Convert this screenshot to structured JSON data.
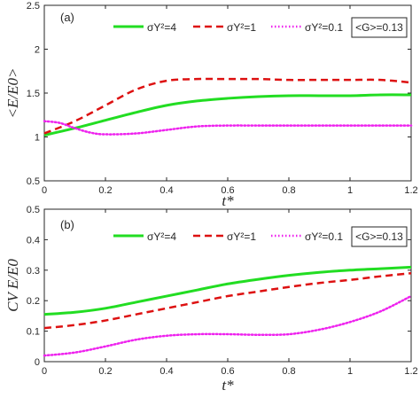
{
  "chart_data": [
    {
      "type": "line",
      "panel_label": "(a)",
      "xlabel": "t*",
      "ylabel": "<E/E0>",
      "xlim": [
        0,
        1.2
      ],
      "ylim": [
        0.5,
        2.5
      ],
      "x_ticks": [
        "0",
        "0.2",
        "0.4",
        "0.6",
        "0.8",
        "1",
        "1.2"
      ],
      "y_ticks": [
        "0.5",
        "1",
        "1.5",
        "2",
        "2.5"
      ],
      "legend_location": "top",
      "annotation_box": "<G>=0.13",
      "series": [
        {
          "name": "σY²=4",
          "color": "#22dd22",
          "style": "solid",
          "x": [
            0,
            0.1,
            0.2,
            0.3,
            0.4,
            0.5,
            0.6,
            0.7,
            0.8,
            0.9,
            1.0,
            1.1,
            1.2
          ],
          "y": [
            1.02,
            1.1,
            1.19,
            1.28,
            1.36,
            1.41,
            1.44,
            1.46,
            1.47,
            1.47,
            1.47,
            1.48,
            1.48
          ]
        },
        {
          "name": "σY²=1",
          "color": "#dd1111",
          "style": "dashed",
          "x": [
            0,
            0.1,
            0.2,
            0.3,
            0.4,
            0.5,
            0.6,
            0.7,
            0.8,
            0.9,
            1.0,
            1.1,
            1.2
          ],
          "y": [
            1.04,
            1.18,
            1.36,
            1.54,
            1.64,
            1.66,
            1.66,
            1.66,
            1.65,
            1.65,
            1.65,
            1.65,
            1.62
          ]
        },
        {
          "name": "σY²=0.1",
          "color": "#ee22ee",
          "style": "dotted",
          "x": [
            0,
            0.05,
            0.1,
            0.15,
            0.2,
            0.3,
            0.4,
            0.5,
            0.6,
            0.7,
            0.8,
            0.9,
            1.0,
            1.1,
            1.2
          ],
          "y": [
            1.18,
            1.16,
            1.1,
            1.05,
            1.03,
            1.04,
            1.08,
            1.12,
            1.13,
            1.13,
            1.13,
            1.13,
            1.13,
            1.13,
            1.13
          ]
        }
      ]
    },
    {
      "type": "line",
      "panel_label": "(b)",
      "xlabel": "t*",
      "ylabel": "CV E/E0",
      "xlim": [
        0,
        1.2
      ],
      "ylim": [
        0,
        0.5
      ],
      "x_ticks": [
        "0",
        "0.2",
        "0.4",
        "0.6",
        "0.8",
        "1",
        "1.2"
      ],
      "y_ticks": [
        "0",
        "0.1",
        "0.2",
        "0.3",
        "0.4",
        "0.5"
      ],
      "legend_location": "top",
      "annotation_box": "<G>=0.13",
      "series": [
        {
          "name": "σY²=4",
          "color": "#22dd22",
          "style": "solid",
          "x": [
            0,
            0.1,
            0.2,
            0.3,
            0.4,
            0.5,
            0.6,
            0.7,
            0.8,
            0.9,
            1.0,
            1.1,
            1.2
          ],
          "y": [
            0.155,
            0.162,
            0.175,
            0.195,
            0.215,
            0.235,
            0.255,
            0.27,
            0.283,
            0.293,
            0.3,
            0.305,
            0.31
          ]
        },
        {
          "name": "σY²=1",
          "color": "#dd1111",
          "style": "dashed",
          "x": [
            0,
            0.1,
            0.2,
            0.3,
            0.4,
            0.5,
            0.6,
            0.7,
            0.8,
            0.9,
            1.0,
            1.1,
            1.2
          ],
          "y": [
            0.11,
            0.12,
            0.135,
            0.155,
            0.175,
            0.195,
            0.215,
            0.23,
            0.245,
            0.258,
            0.268,
            0.28,
            0.29
          ]
        },
        {
          "name": "σY²=0.1",
          "color": "#ee22ee",
          "style": "dotted",
          "x": [
            0,
            0.1,
            0.2,
            0.3,
            0.4,
            0.5,
            0.6,
            0.7,
            0.8,
            0.9,
            1.0,
            1.1,
            1.2
          ],
          "y": [
            0.02,
            0.03,
            0.05,
            0.072,
            0.085,
            0.09,
            0.09,
            0.088,
            0.09,
            0.105,
            0.13,
            0.165,
            0.215
          ]
        }
      ]
    }
  ]
}
